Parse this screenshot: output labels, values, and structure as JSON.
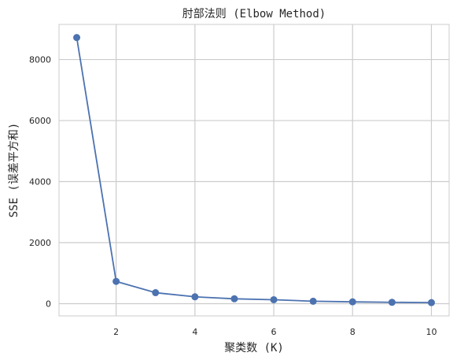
{
  "chart_data": {
    "type": "line",
    "title": "肘部法则 (Elbow Method)",
    "xlabel": "聚类数 (K)",
    "ylabel": "SSE (误差平方和)",
    "x": [
      1,
      2,
      3,
      4,
      5,
      6,
      7,
      8,
      9,
      10
    ],
    "series": [
      {
        "values": [
          8720,
          730,
          360,
          225,
          160,
          130,
          80,
          60,
          45,
          35
        ]
      }
    ],
    "xlim": [
      0.55,
      10.45
    ],
    "ylim": [
      -400,
      9150
    ],
    "xticks": [
      2,
      4,
      6,
      8,
      10
    ],
    "yticks": [
      0,
      2000,
      4000,
      6000,
      8000
    ],
    "grid": true,
    "marker": "circle",
    "line_color": "#4c72b0",
    "grid_color": "#cccccc",
    "spine_color": "#cccccc"
  }
}
